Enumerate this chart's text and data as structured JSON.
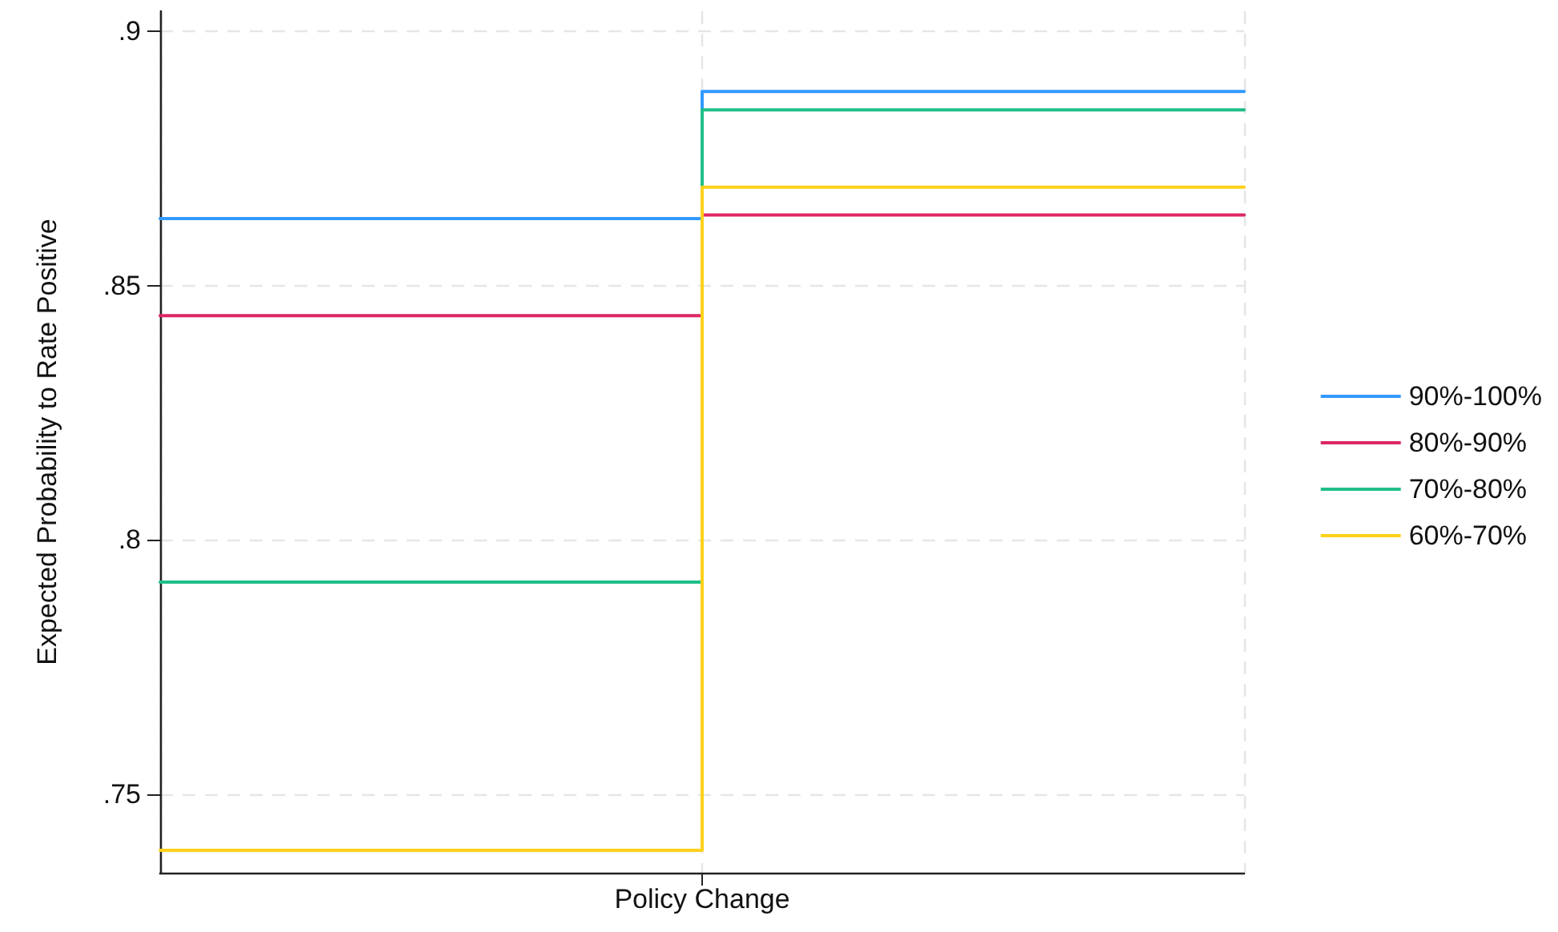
{
  "chart_data": {
    "type": "step",
    "ylabel": "Expected Probability to Rate Positive",
    "categories": [
      null,
      "Policy Change",
      null
    ],
    "ylim": [
      0.7345,
      0.904
    ],
    "yticks": [
      {
        "value": 0.75,
        "label": ".75"
      },
      {
        "value": 0.8,
        "label": ".8"
      },
      {
        "value": 0.85,
        "label": ".85"
      },
      {
        "value": 0.9,
        "label": ".9"
      }
    ],
    "series": [
      {
        "name": "90%-100%",
        "color": "#3399ff",
        "values": [
          0.8632,
          0.8882,
          0.8882
        ]
      },
      {
        "name": "80%-90%",
        "color": "#dc2762",
        "values": [
          0.8441,
          0.8639,
          0.8639
        ]
      },
      {
        "name": "70%-80%",
        "color": "#1fbf87",
        "values": [
          0.7917,
          0.8846,
          0.8846
        ]
      },
      {
        "name": "60%-70%",
        "color": "#ffd11a",
        "values": [
          0.7389,
          0.8694,
          0.8694
        ]
      }
    ],
    "grid": true,
    "legend": "right",
    "line_style": "solid",
    "marker": "none"
  }
}
